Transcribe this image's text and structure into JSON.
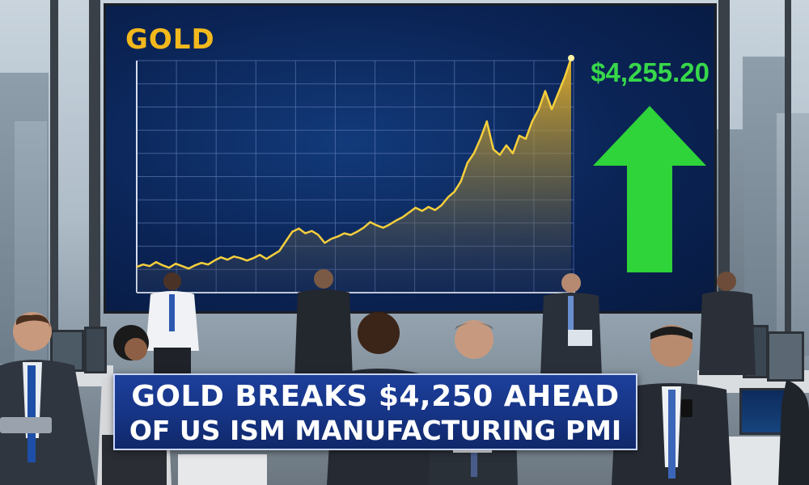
{
  "screen": {
    "title": "GOLD",
    "price": "$4,255.20",
    "colors": {
      "gold": "#f2b81c",
      "up": "#37d84a",
      "screen_bg": "#0b2456"
    },
    "arrow_icon": "up-arrow-icon"
  },
  "chart_data": {
    "type": "area",
    "title": "GOLD",
    "series": [
      {
        "values": [
          18,
          21,
          19,
          24,
          20,
          17,
          22,
          19,
          16,
          20,
          23,
          21,
          26,
          30,
          27,
          31,
          29,
          26,
          29,
          33,
          28,
          33,
          38,
          50,
          62,
          66,
          60,
          63,
          58,
          48,
          53,
          56,
          60,
          58,
          62,
          67,
          74,
          70,
          67,
          71,
          76,
          80,
          86,
          92,
          88,
          93,
          89,
          95,
          105,
          112,
          125,
          148,
          160,
          178,
          200,
          165,
          158,
          170,
          160,
          182,
          178,
          200,
          215,
          238,
          215,
          235,
          255,
          279
        ]
      }
    ],
    "grid": true
  },
  "headline": {
    "line1": "GOLD BREAKS $4,250 AHEAD",
    "line2": "OF US ISM MANUFACTURING PMI"
  }
}
